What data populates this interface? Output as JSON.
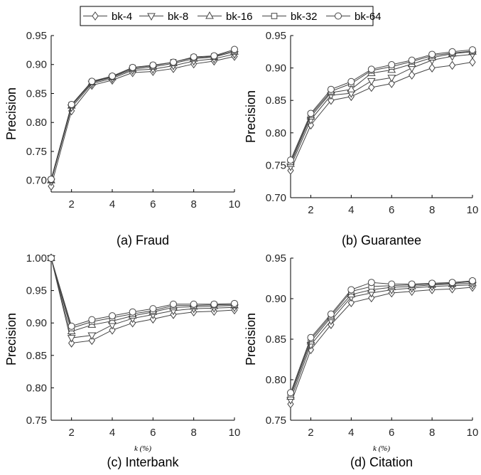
{
  "legend": {
    "entries": [
      {
        "name": "bk-4",
        "marker": "diamond"
      },
      {
        "name": "bk-8",
        "marker": "triangle-down"
      },
      {
        "name": "bk-16",
        "marker": "triangle-up"
      },
      {
        "name": "bk-32",
        "marker": "square"
      },
      {
        "name": "bk-64",
        "marker": "circle"
      }
    ],
    "placement": "top-center"
  },
  "chart_data": [
    {
      "type": "line",
      "caption": "(a) Fraud",
      "xlabel": "",
      "ylabel": "Precision",
      "x": [
        1,
        2,
        3,
        4,
        5,
        6,
        7,
        8,
        9,
        10
      ],
      "xlim": [
        1,
        10
      ],
      "xticks": [
        2,
        4,
        6,
        8,
        10
      ],
      "ylim": [
        0.68,
        0.95
      ],
      "yticks": [
        0.7,
        0.75,
        0.8,
        0.85,
        0.9,
        0.95
      ],
      "series": [
        {
          "name": "bk-4",
          "values": [
            0.69,
            0.82,
            0.864,
            0.873,
            0.886,
            0.888,
            0.893,
            0.901,
            0.906,
            0.914
          ]
        },
        {
          "name": "bk-8",
          "values": [
            0.698,
            0.826,
            0.867,
            0.876,
            0.89,
            0.892,
            0.898,
            0.906,
            0.91,
            0.918
          ]
        },
        {
          "name": "bk-16",
          "values": [
            0.7,
            0.829,
            0.869,
            0.878,
            0.892,
            0.896,
            0.902,
            0.91,
            0.913,
            0.922
          ]
        },
        {
          "name": "bk-32",
          "values": [
            0.701,
            0.83,
            0.87,
            0.879,
            0.894,
            0.898,
            0.904,
            0.912,
            0.914,
            0.924
          ]
        },
        {
          "name": "bk-64",
          "values": [
            0.702,
            0.831,
            0.871,
            0.88,
            0.895,
            0.899,
            0.904,
            0.913,
            0.915,
            0.926
          ]
        }
      ]
    },
    {
      "type": "line",
      "caption": "(b) Guarantee",
      "xlabel": "",
      "ylabel": "Precision",
      "x": [
        1,
        2,
        3,
        4,
        5,
        6,
        7,
        8,
        9,
        10
      ],
      "xlim": [
        1,
        10
      ],
      "xticks": [
        2,
        4,
        6,
        8,
        10
      ],
      "ylim": [
        0.7,
        0.95
      ],
      "yticks": [
        0.7,
        0.75,
        0.8,
        0.85,
        0.9,
        0.95
      ],
      "series": [
        {
          "name": "bk-4",
          "values": [
            0.742,
            0.812,
            0.85,
            0.856,
            0.87,
            0.876,
            0.889,
            0.9,
            0.904,
            0.909
          ]
        },
        {
          "name": "bk-8",
          "values": [
            0.748,
            0.82,
            0.858,
            0.861,
            0.88,
            0.885,
            0.9,
            0.912,
            0.918,
            0.921
          ]
        },
        {
          "name": "bk-16",
          "values": [
            0.752,
            0.825,
            0.862,
            0.867,
            0.892,
            0.897,
            0.906,
            0.916,
            0.922,
            0.925
          ]
        },
        {
          "name": "bk-32",
          "values": [
            0.755,
            0.828,
            0.864,
            0.876,
            0.896,
            0.902,
            0.91,
            0.919,
            0.923,
            0.926
          ]
        },
        {
          "name": "bk-64",
          "values": [
            0.758,
            0.83,
            0.867,
            0.879,
            0.898,
            0.905,
            0.912,
            0.921,
            0.925,
            0.928
          ]
        }
      ]
    },
    {
      "type": "line",
      "caption": "(c) Interbank",
      "xlabel": "k (%)",
      "ylabel": "Precision",
      "x": [
        1,
        2,
        3,
        4,
        5,
        6,
        7,
        8,
        9,
        10
      ],
      "xlim": [
        1,
        10
      ],
      "xticks": [
        2,
        4,
        6,
        8,
        10
      ],
      "ylim": [
        0.75,
        1.0
      ],
      "yticks": [
        0.75,
        0.8,
        0.85,
        0.9,
        0.95,
        1.0
      ],
      "series": [
        {
          "name": "bk-4",
          "values": [
            1.0,
            0.869,
            0.873,
            0.889,
            0.9,
            0.906,
            0.913,
            0.917,
            0.918,
            0.92
          ]
        },
        {
          "name": "bk-8",
          "values": [
            1.0,
            0.877,
            0.881,
            0.897,
            0.907,
            0.913,
            0.919,
            0.922,
            0.923,
            0.924
          ]
        },
        {
          "name": "bk-16",
          "values": [
            1.0,
            0.887,
            0.897,
            0.903,
            0.911,
            0.917,
            0.924,
            0.925,
            0.926,
            0.927
          ]
        },
        {
          "name": "bk-32",
          "values": [
            1.0,
            0.892,
            0.902,
            0.908,
            0.914,
            0.919,
            0.927,
            0.927,
            0.928,
            0.928
          ]
        },
        {
          "name": "bk-64",
          "values": [
            1.0,
            0.895,
            0.905,
            0.911,
            0.917,
            0.922,
            0.929,
            0.929,
            0.929,
            0.93
          ]
        }
      ]
    },
    {
      "type": "line",
      "caption": "(d) Citation",
      "xlabel": "k (%)",
      "ylabel": "Precision",
      "x": [
        1,
        2,
        3,
        4,
        5,
        6,
        7,
        8,
        9,
        10
      ],
      "xlim": [
        1,
        10
      ],
      "xticks": [
        2,
        4,
        6,
        8,
        10
      ],
      "ylim": [
        0.75,
        0.95
      ],
      "yticks": [
        0.75,
        0.8,
        0.85,
        0.9,
        0.95
      ],
      "series": [
        {
          "name": "bk-4",
          "values": [
            0.77,
            0.837,
            0.868,
            0.895,
            0.901,
            0.907,
            0.909,
            0.911,
            0.912,
            0.914
          ]
        },
        {
          "name": "bk-8",
          "values": [
            0.775,
            0.843,
            0.873,
            0.902,
            0.907,
            0.911,
            0.913,
            0.915,
            0.916,
            0.917
          ]
        },
        {
          "name": "bk-16",
          "values": [
            0.779,
            0.847,
            0.877,
            0.905,
            0.911,
            0.914,
            0.915,
            0.917,
            0.918,
            0.919
          ]
        },
        {
          "name": "bk-32",
          "values": [
            0.782,
            0.85,
            0.879,
            0.909,
            0.915,
            0.916,
            0.917,
            0.918,
            0.919,
            0.921
          ]
        },
        {
          "name": "bk-64",
          "values": [
            0.784,
            0.852,
            0.881,
            0.911,
            0.92,
            0.918,
            0.918,
            0.919,
            0.92,
            0.922
          ]
        }
      ]
    }
  ]
}
